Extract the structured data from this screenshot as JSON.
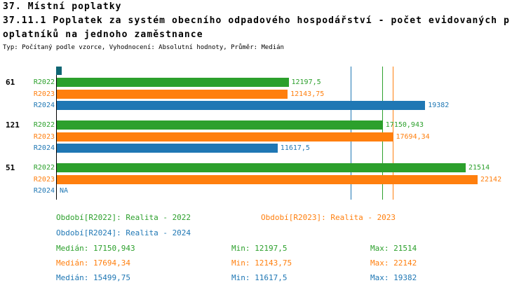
{
  "header": {
    "line1": "37. Místní poplatky",
    "line2": "37.11.1 Poplatek za systém obecního odpadového hospodářství - počet evidovaných p",
    "line3": "oplatníků na jednoho zaměstnance",
    "subtitle": "Typ: Počítaný podle vzorce, Vyhodnocení: Absolutní hodnoty, Průměr: Medián"
  },
  "colors": {
    "green": "#2ca02c",
    "orange": "#ff7f0e",
    "blue": "#1f77b4",
    "origin_marker": "#0f6673",
    "axis": "#000000"
  },
  "chart_data": {
    "type": "bar",
    "orientation": "horizontal",
    "x_axis_max_value": 22142,
    "series_colors": {
      "R2022": "#2ca02c",
      "R2023": "#ff7f0e",
      "R2024": "#1f77b4"
    },
    "groups": [
      {
        "label": "61",
        "bars": [
          {
            "series": "R2022",
            "value": 12197.5,
            "label": "12197,5"
          },
          {
            "series": "R2023",
            "value": 12143.75,
            "label": "12143,75"
          },
          {
            "series": "R2024",
            "value": 19382,
            "label": "19382"
          }
        ]
      },
      {
        "label": "121",
        "bars": [
          {
            "series": "R2022",
            "value": 17150.943,
            "label": "17150,943"
          },
          {
            "series": "R2023",
            "value": 17694.34,
            "label": "17694,34"
          },
          {
            "series": "R2024",
            "value": 11617.5,
            "label": "11617,5"
          }
        ]
      },
      {
        "label": "51",
        "bars": [
          {
            "series": "R2022",
            "value": 21514,
            "label": "21514"
          },
          {
            "series": "R2023",
            "value": 22142,
            "label": "22142"
          },
          {
            "series": "R2024",
            "value": null,
            "label": "NA"
          }
        ]
      }
    ],
    "median_lines": [
      {
        "series": "R2022",
        "value": 17150.943
      },
      {
        "series": "R2023",
        "value": 17694.34
      },
      {
        "series": "R2024",
        "value": 15499.75
      }
    ]
  },
  "legend": {
    "r2022": "Období[R2022]: Realita - 2022",
    "r2023": "Období[R2023]: Realita - 2023",
    "r2024": "Období[R2024]: Realita - 2024"
  },
  "stats": [
    {
      "series": "R2022",
      "median": "Medián: 17150,943",
      "min": "Min: 12197,5",
      "max": "Max: 21514"
    },
    {
      "series": "R2023",
      "median": "Medián: 17694,34",
      "min": "Min: 12143,75",
      "max": "Max: 22142"
    },
    {
      "series": "R2024",
      "median": "Medián: 15499,75",
      "min": "Min: 11617,5",
      "max": "Max: 19382"
    }
  ]
}
